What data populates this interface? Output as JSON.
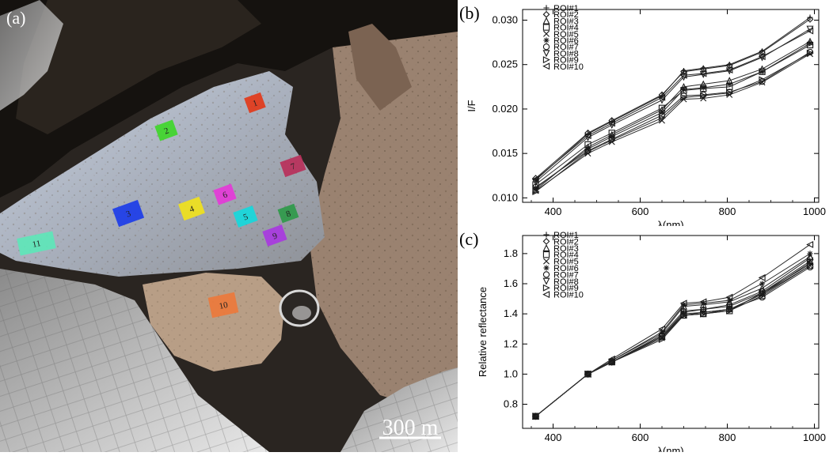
{
  "panel_a": {
    "label": "(a)",
    "scale_bar_label": "300 m",
    "rois": [
      {
        "label": "1",
        "color": "#e23a1a"
      },
      {
        "label": "2",
        "color": "#3fd62a"
      },
      {
        "label": "3",
        "color": "#1c3ce8"
      },
      {
        "label": "4",
        "color": "#f0e21c"
      },
      {
        "label": "5",
        "color": "#16d8dc"
      },
      {
        "label": "6",
        "color": "#e43ad8"
      },
      {
        "label": "7",
        "color": "#b8305a"
      },
      {
        "label": "8",
        "color": "#2f9a4a"
      },
      {
        "label": "9",
        "color": "#a83ae0"
      },
      {
        "label": "10",
        "color": "#ec7a3c"
      },
      {
        "label": "11",
        "color": "#5ee6b8"
      }
    ]
  },
  "chart_data": [
    {
      "panel_label": "(b)",
      "type": "line",
      "xlabel": "λ(nm)",
      "ylabel": "I/F",
      "xlim": [
        330,
        1010
      ],
      "ylim": [
        0.0095,
        0.0312
      ],
      "xticks": [
        "400",
        "600",
        "800",
        "1000"
      ],
      "yticks": [
        "0.010",
        "0.015",
        "0.020",
        "0.025",
        "0.030"
      ],
      "x": [
        360,
        480,
        535,
        650,
        700,
        745,
        805,
        880,
        990
      ],
      "legend": [
        "ROI#1",
        "ROI#2",
        "ROI#3",
        "ROI#4",
        "ROI#5",
        "ROI#6",
        "ROI#7",
        "ROI#8",
        "ROI#9",
        "ROI#10"
      ],
      "series": [
        {
          "name": "ROI#1",
          "values": [
            0.012,
            0.0172,
            0.0186,
            0.0215,
            0.0243,
            0.0246,
            0.025,
            0.0265,
            0.0303
          ]
        },
        {
          "name": "ROI#2",
          "values": [
            0.0122,
            0.0173,
            0.0187,
            0.0216,
            0.0242,
            0.0245,
            0.0249,
            0.0264,
            0.0301
          ]
        },
        {
          "name": "ROI#3",
          "values": [
            0.0109,
            0.0157,
            0.0171,
            0.0199,
            0.0225,
            0.0228,
            0.0232,
            0.0245,
            0.0276
          ]
        },
        {
          "name": "ROI#4",
          "values": [
            0.0115,
            0.016,
            0.0173,
            0.0201,
            0.0221,
            0.0223,
            0.0225,
            0.0242,
            0.0272
          ]
        },
        {
          "name": "ROI#5",
          "values": [
            0.0108,
            0.015,
            0.0163,
            0.0187,
            0.0211,
            0.0212,
            0.0216,
            0.023,
            0.0262
          ]
        },
        {
          "name": "ROI#6",
          "values": [
            0.0111,
            0.0155,
            0.0169,
            0.0196,
            0.0222,
            0.0224,
            0.0228,
            0.0242,
            0.0274
          ]
        },
        {
          "name": "ROI#7",
          "values": [
            0.0112,
            0.0153,
            0.0166,
            0.0193,
            0.0215,
            0.0216,
            0.0219,
            0.0231,
            0.0264
          ]
        },
        {
          "name": "ROI#8",
          "values": [
            0.0118,
            0.0168,
            0.0182,
            0.021,
            0.0236,
            0.0239,
            0.0243,
            0.0258,
            0.029
          ]
        },
        {
          "name": "ROI#9",
          "values": [
            0.0107,
            0.0152,
            0.0165,
            0.019,
            0.0213,
            0.0215,
            0.0218,
            0.0233,
            0.0263
          ]
        },
        {
          "name": "ROI#10",
          "values": [
            0.0121,
            0.017,
            0.0184,
            0.0213,
            0.0238,
            0.024,
            0.0244,
            0.0259,
            0.0288
          ]
        }
      ]
    },
    {
      "panel_label": "(c)",
      "type": "line",
      "xlabel": "λ(nm)",
      "ylabel": "Relative reflectance",
      "xlim": [
        330,
        1010
      ],
      "ylim": [
        0.64,
        1.92
      ],
      "xticks": [
        "400",
        "600",
        "800",
        "1000"
      ],
      "yticks": [
        "0.8",
        "1.0",
        "1.2",
        "1.4",
        "1.6",
        "1.8"
      ],
      "x": [
        360,
        480,
        535,
        650,
        700,
        745,
        805,
        880,
        990
      ],
      "legend": [
        "ROI#1",
        "ROI#2",
        "ROI#3",
        "ROI#4",
        "ROI#5",
        "ROI#6",
        "ROI#7",
        "ROI#8",
        "ROI#9",
        "ROI#10"
      ],
      "series": [
        {
          "name": "ROI#1",
          "values": [
            0.72,
            1.0,
            1.08,
            1.25,
            1.41,
            1.43,
            1.45,
            1.54,
            1.75
          ]
        },
        {
          "name": "ROI#2",
          "values": [
            0.72,
            1.0,
            1.08,
            1.26,
            1.42,
            1.43,
            1.46,
            1.55,
            1.77
          ]
        },
        {
          "name": "ROI#3",
          "values": [
            0.72,
            1.0,
            1.09,
            1.27,
            1.45,
            1.46,
            1.48,
            1.57,
            1.78
          ]
        },
        {
          "name": "ROI#4",
          "values": [
            0.72,
            1.0,
            1.08,
            1.25,
            1.39,
            1.4,
            1.42,
            1.52,
            1.72
          ]
        },
        {
          "name": "ROI#5",
          "values": [
            0.72,
            1.0,
            1.08,
            1.24,
            1.39,
            1.41,
            1.43,
            1.53,
            1.72
          ]
        },
        {
          "name": "ROI#6",
          "values": [
            0.72,
            1.0,
            1.09,
            1.28,
            1.46,
            1.47,
            1.49,
            1.6,
            1.8
          ]
        },
        {
          "name": "ROI#7",
          "values": [
            0.72,
            1.0,
            1.08,
            1.25,
            1.39,
            1.4,
            1.43,
            1.51,
            1.71
          ]
        },
        {
          "name": "ROI#8",
          "values": [
            0.72,
            1.0,
            1.08,
            1.25,
            1.4,
            1.41,
            1.43,
            1.53,
            1.74
          ]
        },
        {
          "name": "ROI#9",
          "values": [
            0.72,
            1.0,
            1.08,
            1.23,
            1.39,
            1.4,
            1.42,
            1.54,
            1.73
          ]
        },
        {
          "name": "ROI#10",
          "values": [
            0.72,
            1.0,
            1.1,
            1.3,
            1.47,
            1.48,
            1.51,
            1.64,
            1.86
          ]
        }
      ]
    }
  ]
}
